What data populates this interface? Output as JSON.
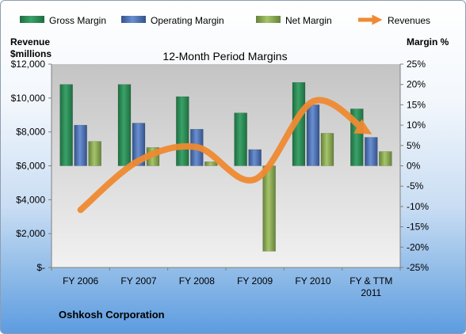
{
  "chart_data": {
    "type": "bar",
    "title": "12-Month Period Margins",
    "left_axis_title": [
      "Revenue",
      "$millions"
    ],
    "right_axis_title": "Margin %",
    "company": "Oshkosh Corporation",
    "categories": [
      [
        "FY 2006"
      ],
      [
        "FY 2007"
      ],
      [
        "FY 2008"
      ],
      [
        "FY 2009"
      ],
      [
        "FY 2010"
      ],
      [
        "FY & TTM",
        "2011"
      ]
    ],
    "left_axis": {
      "min": 0,
      "max": 12000,
      "step": 2000,
      "tick_labels": [
        "$-",
        "$2,000",
        "$4,000",
        "$6,000",
        "$8,000",
        "$10,000",
        "$12,000"
      ]
    },
    "right_axis": {
      "min": -25,
      "max": 25,
      "step": 5,
      "tick_labels": [
        "-25%",
        "-20%",
        "-15%",
        "-10%",
        "-5%",
        "0%",
        "5%",
        "10%",
        "15%",
        "20%",
        "25%"
      ]
    },
    "series": [
      {
        "name": "Gross Margin",
        "axis": "right",
        "kind": "bar",
        "color": "#2e8b57",
        "values": [
          20.0,
          20.0,
          17.0,
          13.0,
          20.5,
          14.0
        ]
      },
      {
        "name": "Operating Margin",
        "axis": "right",
        "kind": "bar",
        "color": "#4f73b8",
        "values": [
          10.0,
          10.5,
          9.0,
          4.0,
          15.0,
          7.0
        ]
      },
      {
        "name": "Net Margin",
        "axis": "right",
        "kind": "bar",
        "color": "#8aa84d",
        "values": [
          6.0,
          4.5,
          1.0,
          -21.0,
          8.0,
          3.5
        ]
      },
      {
        "name": "Revenues",
        "axis": "left",
        "kind": "line",
        "color": "#f08a32",
        "values": [
          3400,
          6300,
          7100,
          5200,
          9800,
          8100
        ]
      }
    ],
    "legend_position": "top",
    "grid": false
  }
}
